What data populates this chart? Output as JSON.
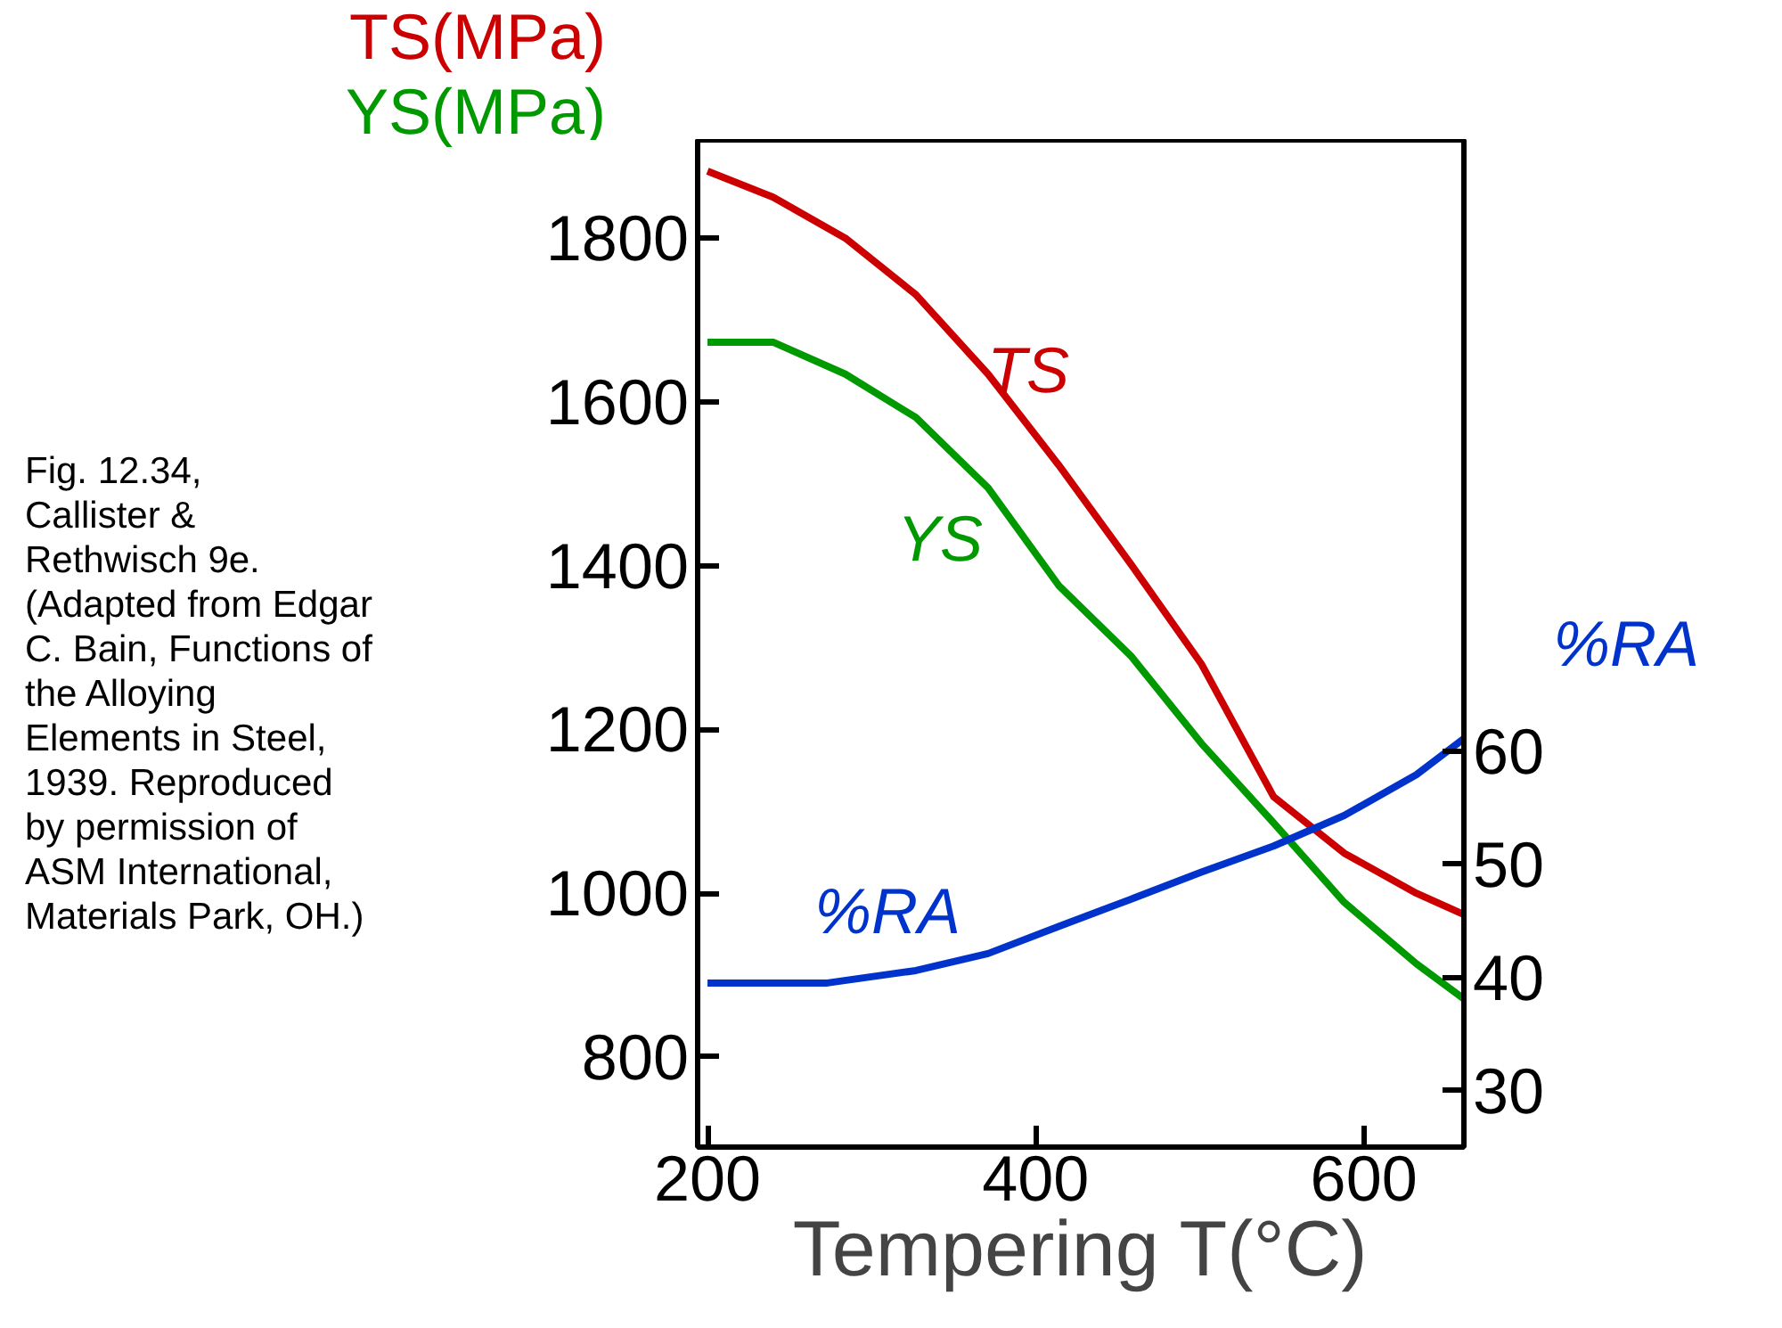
{
  "chart_data": {
    "type": "line",
    "xlabel": "Tempering T(°C)",
    "ylabel": "TS(MPa)\nYS(MPa)",
    "y2label": "%RA",
    "annotations": [
      "Fig. 12.34,\nCallister &\nRethwisch 9e.\n(Adapted from Edgar\nC. Bain, Functions of\nthe Alloying\nElements in Steel,\n1939. Reproduced\nby permission of\nASM International,\nMaterials Park, OH.)"
    ],
    "xlim": [
      194,
      661
    ],
    "xticks": [
      200,
      400,
      600
    ],
    "ylim": [
      690,
      1920
    ],
    "yticks": [
      800,
      1000,
      1200,
      1400,
      1600,
      1800
    ],
    "y2lim": [
      25,
      114
    ],
    "y2ticks": [
      30,
      40,
      50,
      60
    ],
    "grid": false,
    "series": [
      {
        "name": "TS",
        "color": "#cc0000",
        "x": [
          200,
          240,
          284,
          327,
          371,
          414,
          458,
          501,
          545,
          588,
          632,
          661
        ],
        "values": [
          1882,
          1850,
          1800,
          1731,
          1634,
          1523,
          1402,
          1280,
          1118,
          1049,
          1000,
          974
        ]
      },
      {
        "name": "YS",
        "color": "#009900",
        "x": [
          200,
          240,
          284,
          327,
          371,
          414,
          458,
          501,
          545,
          588,
          632,
          661
        ],
        "values": [
          1673,
          1673,
          1634,
          1581,
          1495,
          1376,
          1290,
          1183,
          1086,
          989,
          914,
          871
        ]
      },
      {
        "name": "%RA",
        "color": "#0033cc",
        "axis": "y2",
        "x": [
          200,
          273,
          327,
          371,
          414,
          458,
          501,
          545,
          588,
          632,
          661
        ],
        "values": [
          39.5,
          39.5,
          40.6,
          42.1,
          44.5,
          46.9,
          49.3,
          51.6,
          54.3,
          57.9,
          61.1
        ]
      }
    ]
  }
}
